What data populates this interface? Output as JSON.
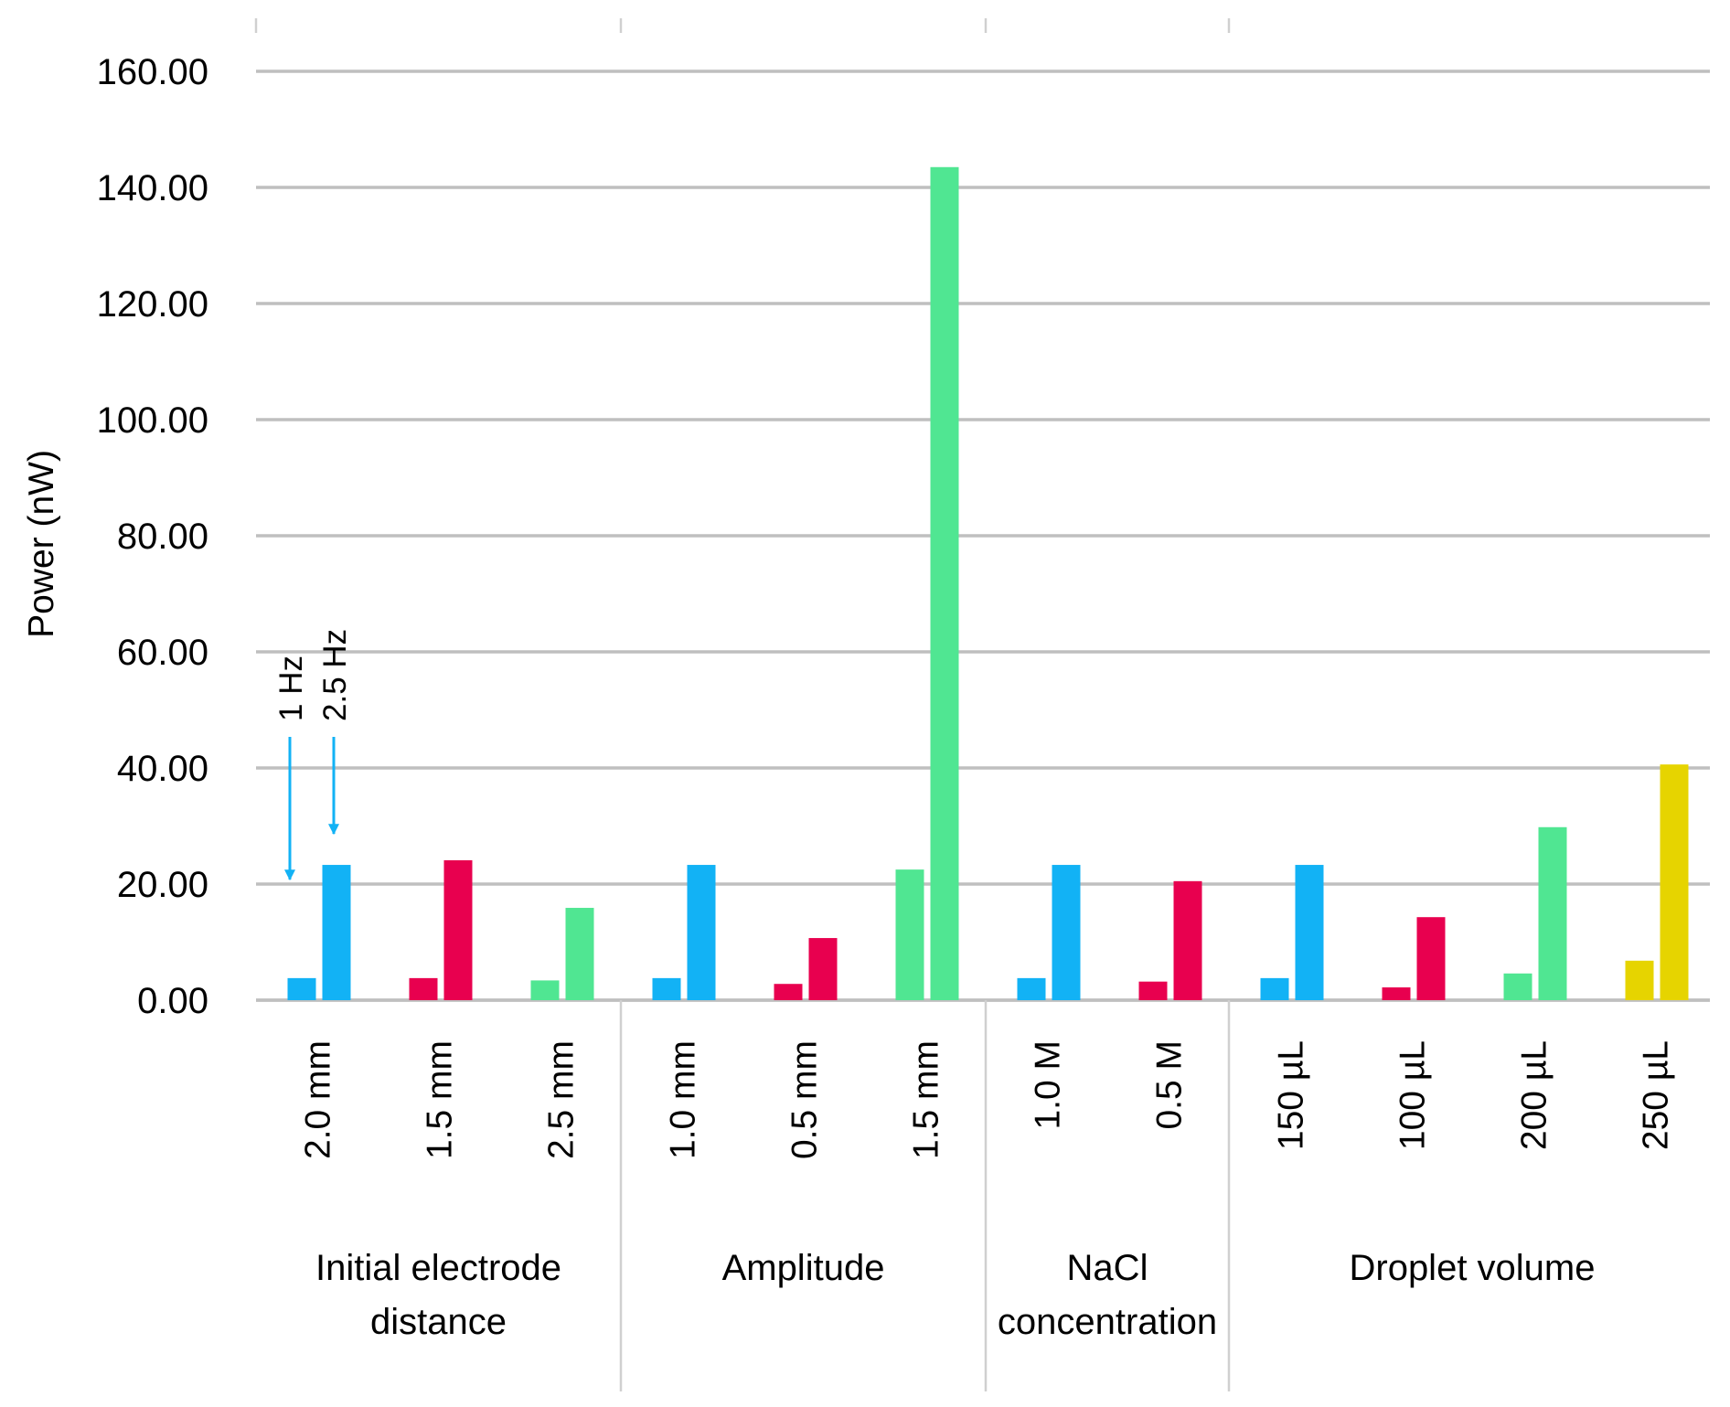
{
  "chart_data": {
    "type": "bar",
    "ylabel": "Power (nW)",
    "ylim": [
      0,
      160
    ],
    "yticks": [
      "0.00",
      "20.00",
      "40.00",
      "60.00",
      "80.00",
      "100.00",
      "120.00",
      "140.00",
      "160.00"
    ],
    "grid": true,
    "series_legend": [
      "1 Hz",
      "2.5 Hz"
    ],
    "groups": [
      {
        "label": "Initial electrode distance",
        "label_lines": [
          "Initial electrode",
          "distance"
        ],
        "categories": [
          {
            "label": "2.0 mm",
            "values": [
              3.8,
              23.3
            ],
            "color": "#12b2f5"
          },
          {
            "label": "1.5 mm",
            "values": [
              3.8,
              24.1
            ],
            "color": "#e8004f"
          },
          {
            "label": "2.5 mm",
            "values": [
              3.4,
              15.9
            ],
            "color": "#50e692"
          }
        ]
      },
      {
        "label": "Amplitude",
        "label_lines": [
          "Amplitude"
        ],
        "categories": [
          {
            "label": "1.0 mm",
            "values": [
              3.8,
              23.3
            ],
            "color": "#12b2f5"
          },
          {
            "label": "0.5 mm",
            "values": [
              2.8,
              10.7
            ],
            "color": "#e8004f"
          },
          {
            "label": "1.5 mm",
            "values": [
              22.5,
              143.5
            ],
            "color": "#50e692"
          }
        ]
      },
      {
        "label": "NaCl concentration",
        "label_lines": [
          "NaCl",
          "concentration"
        ],
        "categories": [
          {
            "label": "1.0 M",
            "values": [
              3.8,
              23.3
            ],
            "color": "#12b2f5"
          },
          {
            "label": "0.5 M",
            "values": [
              3.2,
              20.5
            ],
            "color": "#e8004f"
          }
        ]
      },
      {
        "label": "Droplet volume",
        "label_lines": [
          "Droplet volume"
        ],
        "categories": [
          {
            "label": "150 µL",
            "values": [
              3.8,
              23.3
            ],
            "color": "#12b2f5"
          },
          {
            "label": "100 µL",
            "values": [
              2.2,
              14.3
            ],
            "color": "#e8004f"
          },
          {
            "label": "200 µL",
            "values": [
              4.6,
              29.8
            ],
            "color": "#50e692"
          },
          {
            "label": "250 µL",
            "values": [
              6.8,
              40.6
            ],
            "color": "#e6d400"
          }
        ]
      }
    ],
    "annotation_color": "#12b2f5"
  }
}
